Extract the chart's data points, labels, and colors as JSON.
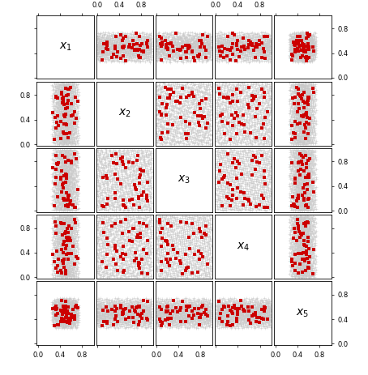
{
  "n_dims": 5,
  "n_grid": 1000,
  "n_design": 50,
  "axis_ticks": [
    0.0,
    0.4,
    0.8
  ],
  "labels": [
    "x_1",
    "x_2",
    "x_3",
    "x_4",
    "x_5"
  ],
  "grid_color": "#c8c8c8",
  "design_color": "#cc0000",
  "grid_marker": "+",
  "design_marker": "s",
  "grid_markersize": 2.5,
  "design_markersize": 2.5,
  "grid_alpha": 0.8,
  "design_alpha": 1.0,
  "figsize": [
    4.54,
    4.63
  ],
  "dpi": 100,
  "label_fontsize": 10,
  "tick_fontsize": 6,
  "xlim": [
    -0.02,
    1.02
  ],
  "ylim": [
    -0.02,
    1.02
  ],
  "theta": [
    0.22,
    0.52,
    0.52,
    0.52,
    0.22
  ],
  "grid_linewidth": 0.4,
  "spine_linewidth": 0.6
}
